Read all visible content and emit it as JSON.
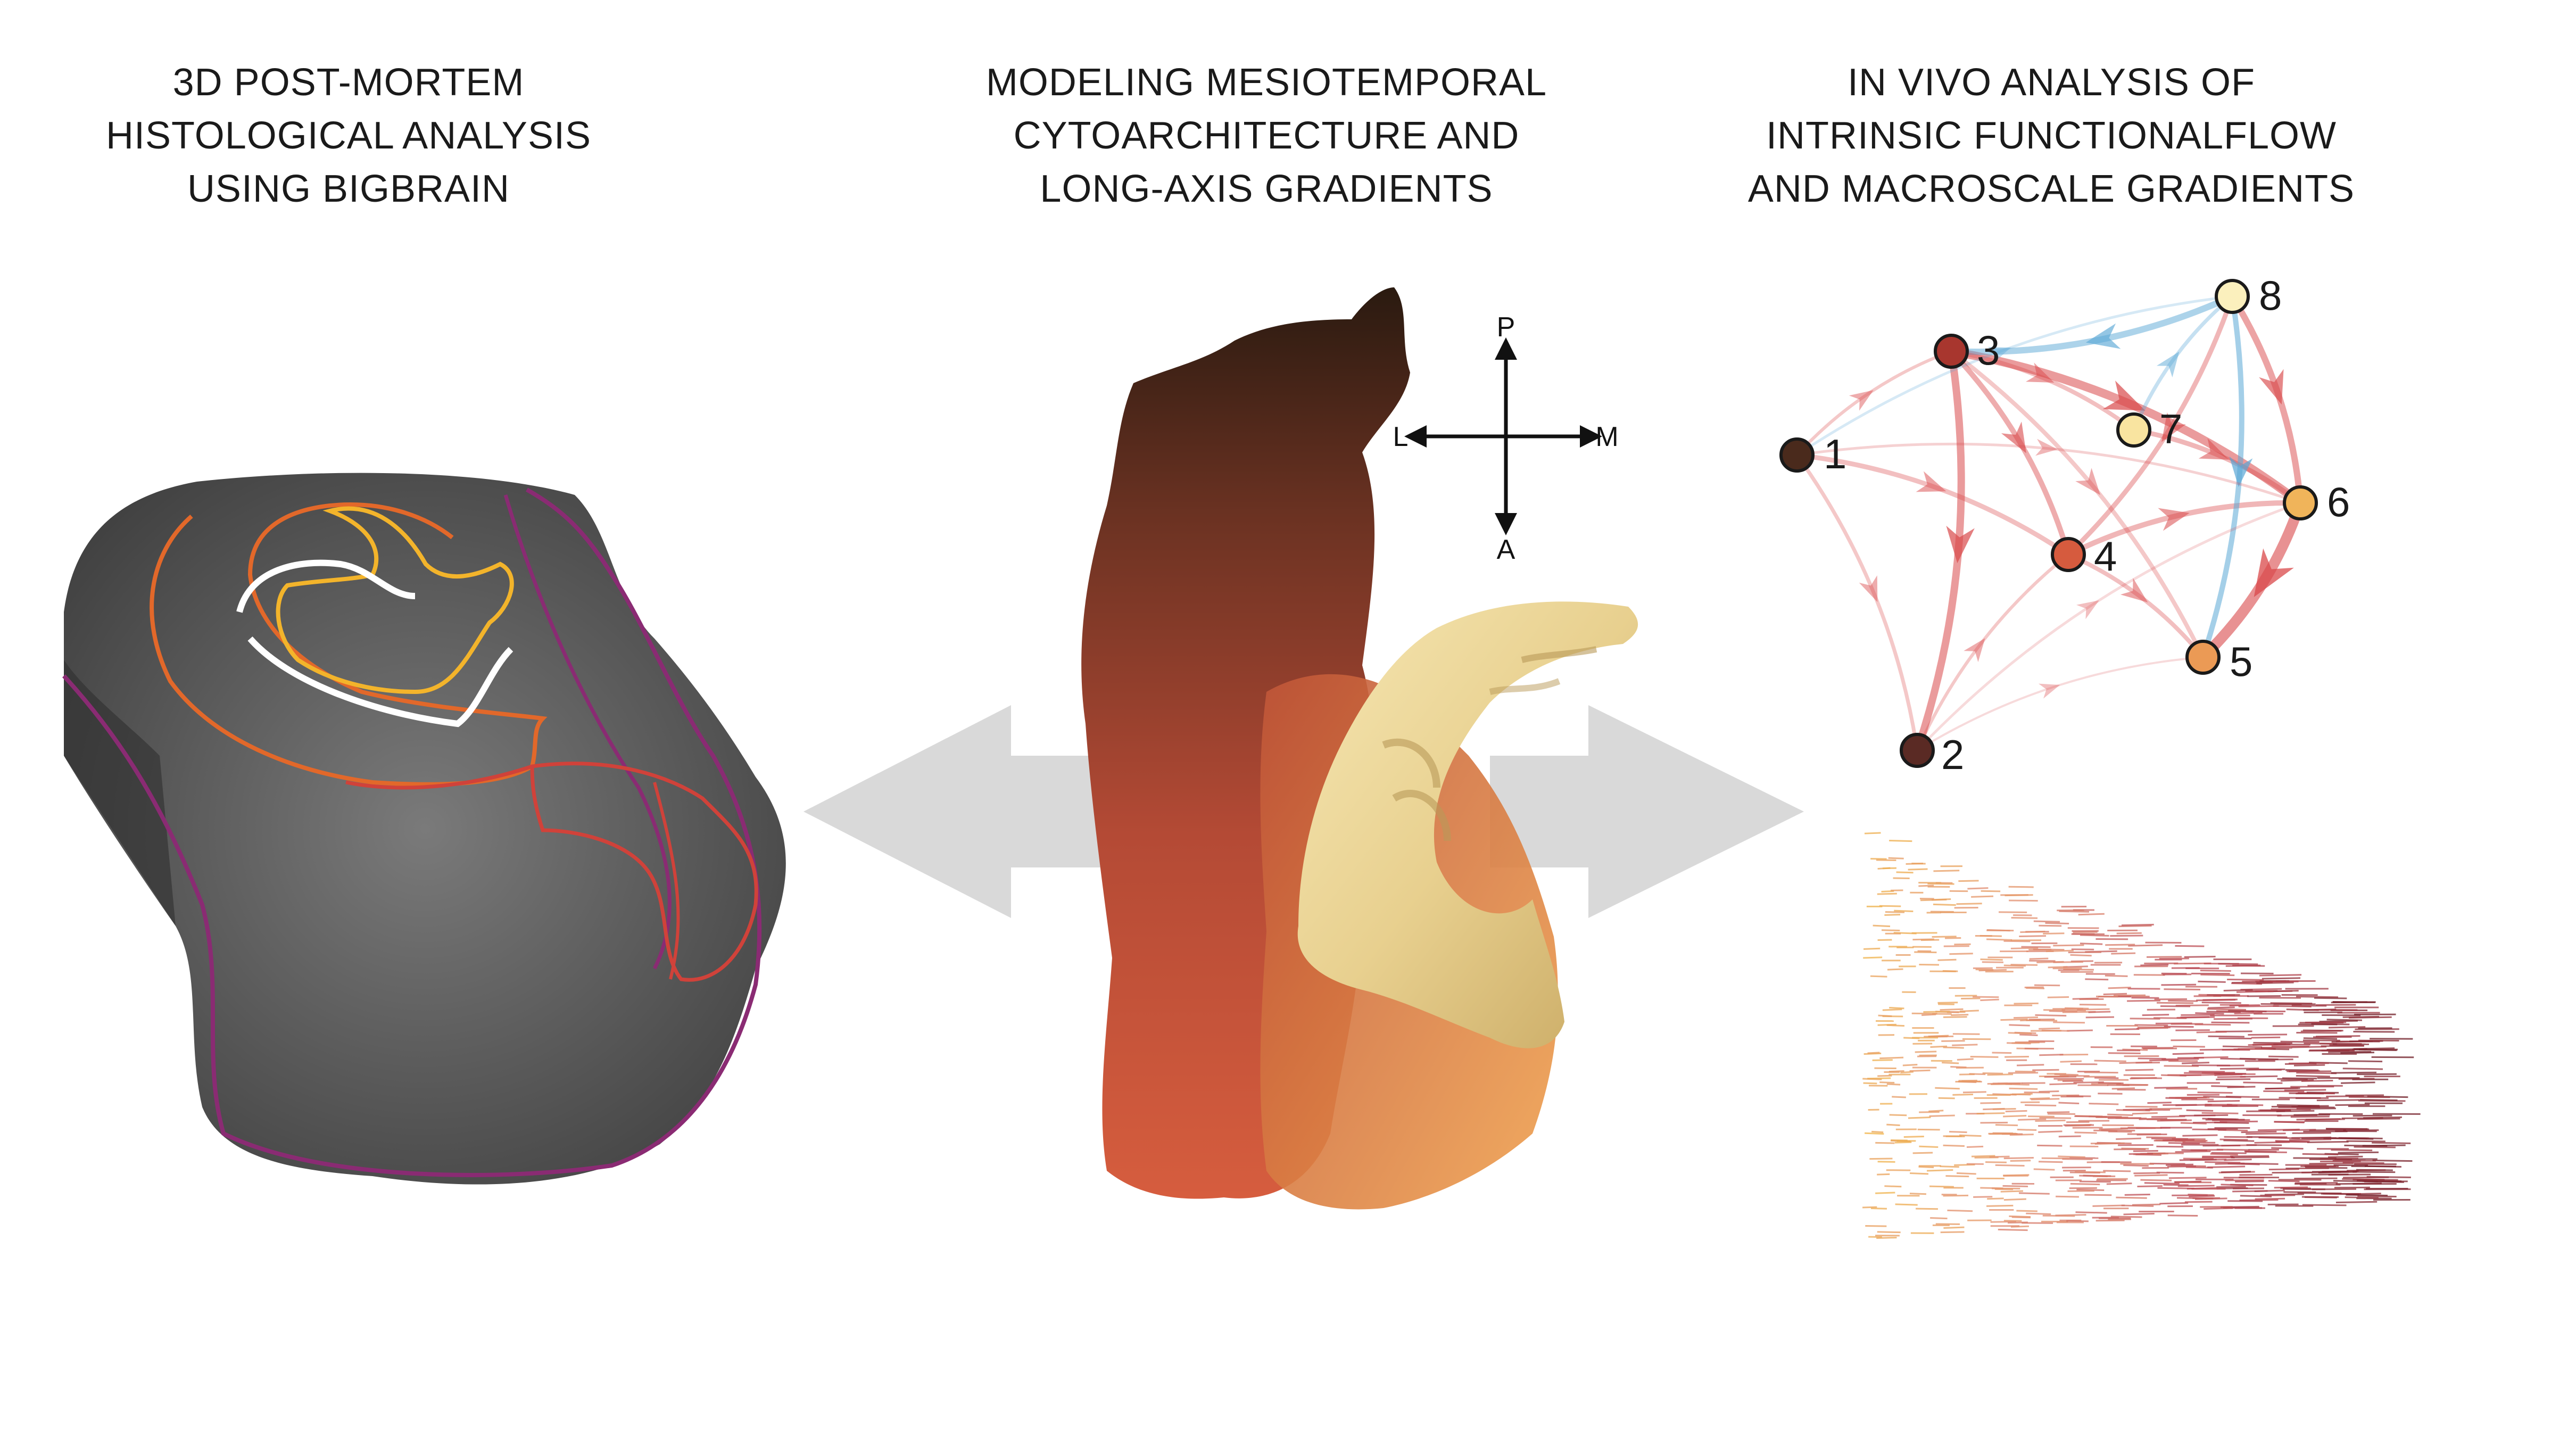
{
  "panels": {
    "left": {
      "title_lines": [
        "3D POST-MORTEM",
        "HISTOLOGICAL ANALYSIS",
        "USING BIGBRAIN"
      ]
    },
    "middle": {
      "title_lines": [
        "MODELING MESIOTEMPORAL",
        "CYTOARCHITECTURE AND",
        "LONG-AXIS GRADIENTS"
      ]
    },
    "right": {
      "title_lines": [
        "IN VIVO ANALYSIS OF",
        "INTRINSIC FUNCTIONALFLOW",
        "AND MACROSCALE GRADIENTS"
      ]
    }
  },
  "orientation": {
    "posterior": "P",
    "anterior": "A",
    "lateral": "L",
    "medial": "M"
  },
  "network": {
    "nodes": [
      {
        "id": "1",
        "color": "#4a2a1c"
      },
      {
        "id": "2",
        "color": "#5a2a24"
      },
      {
        "id": "3",
        "color": "#a8362e"
      },
      {
        "id": "4",
        "color": "#d65b3e"
      },
      {
        "id": "5",
        "color": "#eb9a55"
      },
      {
        "id": "6",
        "color": "#f0b45a"
      },
      {
        "id": "7",
        "color": "#f9e4a0"
      },
      {
        "id": "8",
        "color": "#fbf0bd"
      }
    ]
  },
  "colors": {
    "arrow_gray": "#d9d9d9",
    "edge_red": "#d9484a",
    "edge_blue": "#5aa7d6",
    "outline_purple": "#8a2b73",
    "outline_orange": "#e2682a",
    "outline_yellow": "#f3b42b",
    "outline_red": "#d0423a"
  }
}
